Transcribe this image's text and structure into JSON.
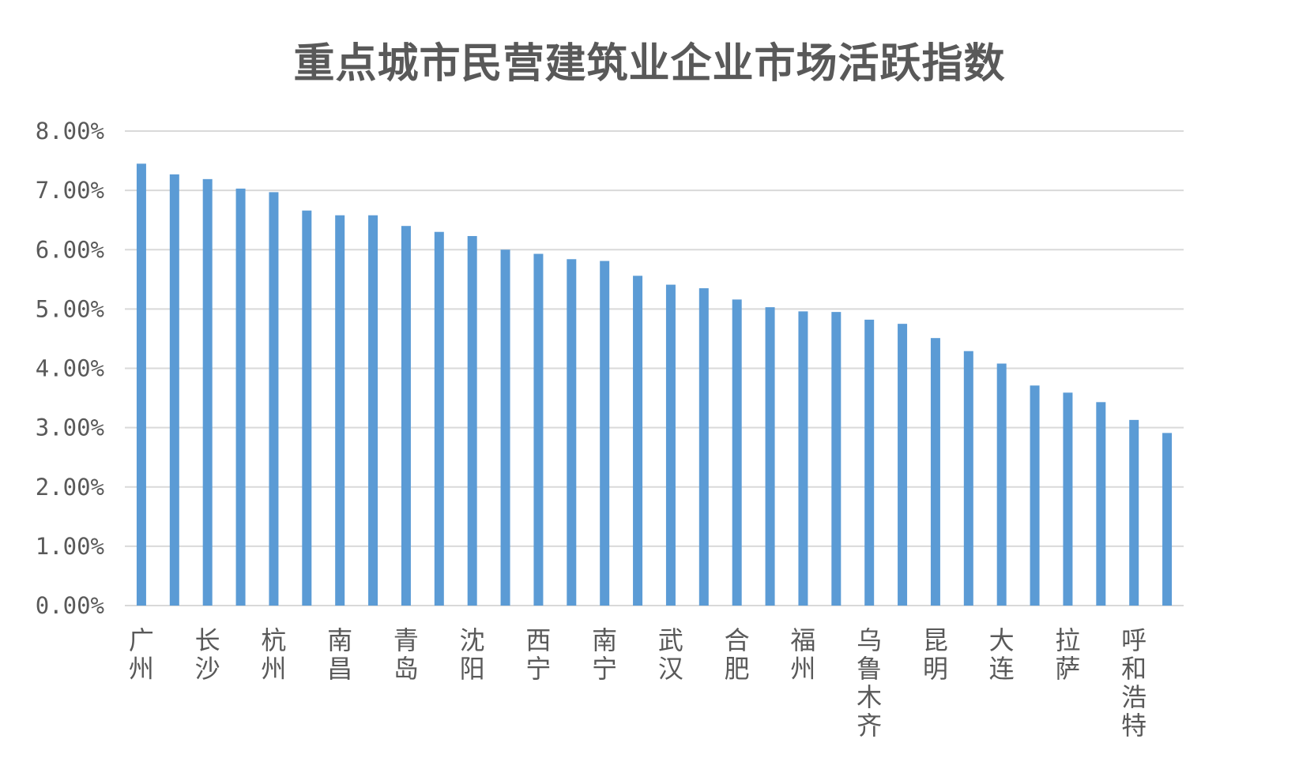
{
  "chart_data": {
    "type": "bar",
    "title": "重点城市民营建筑业企业市场活跃指数",
    "xlabel": "",
    "ylabel": "",
    "ylim": [
      0,
      0.08
    ],
    "y_ticks": [
      "0.00%",
      "1.00%",
      "2.00%",
      "3.00%",
      "4.00%",
      "5.00%",
      "6.00%",
      "7.00%",
      "8.00%"
    ],
    "grid": true,
    "legend": "none",
    "bar_color": "#5b9bd5",
    "grid_color": "#d9d9d9",
    "categories": [
      "广州",
      "",
      "长沙",
      "",
      "杭州",
      "",
      "南昌",
      "",
      "青岛",
      "",
      "沈阳",
      "",
      "西宁",
      "",
      "南宁",
      "",
      "武汉",
      "",
      "合肥",
      "",
      "福州",
      "",
      "乌鲁木齐",
      "",
      "昆明",
      "",
      "大连",
      "",
      "拉萨",
      "",
      "呼和浩特",
      ""
    ],
    "values": [
      0.0745,
      0.0727,
      0.0719,
      0.0703,
      0.0697,
      0.0666,
      0.0658,
      0.0658,
      0.064,
      0.063,
      0.0623,
      0.06,
      0.0593,
      0.0584,
      0.0581,
      0.0556,
      0.0541,
      0.0535,
      0.0516,
      0.0503,
      0.0496,
      0.0495,
      0.0482,
      0.0475,
      0.0451,
      0.0429,
      0.0408,
      0.0371,
      0.0359,
      0.0343,
      0.0313,
      0.0291
    ]
  }
}
